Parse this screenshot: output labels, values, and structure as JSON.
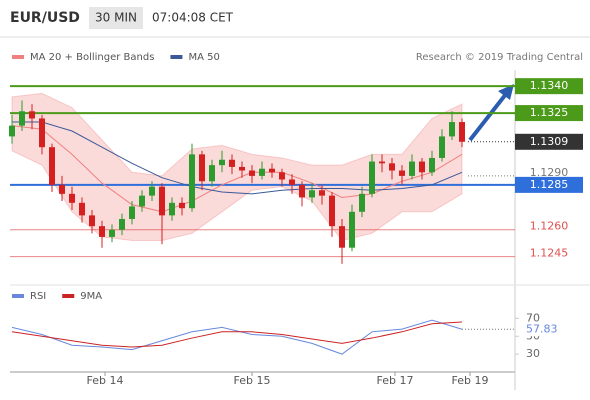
{
  "header": {
    "symbol": "EUR/USD",
    "timeframe": "30 MIN",
    "time": "07:04:08 CET"
  },
  "chart_data": [
    {
      "type": "candlestick",
      "credit": "Research © 2019 Trading Central",
      "up_color": "#2e9b2e",
      "down_color": "#d42020",
      "ylim": [
        1.1232,
        1.1349
      ],
      "xticks": [
        {
          "value": 9.3,
          "label": "Feb 14"
        },
        {
          "value": 24,
          "label": "Feb 15"
        },
        {
          "value": 38.3,
          "label": "Feb 17"
        },
        {
          "value": 45.8,
          "label": "Feb 19"
        }
      ],
      "candles": [
        [
          1.1312,
          1.1324,
          1.1308,
          1.1318
        ],
        [
          1.1318,
          1.1332,
          1.1315,
          1.1326
        ],
        [
          1.1326,
          1.133,
          1.1316,
          1.1322
        ],
        [
          1.1322,
          1.1324,
          1.1302,
          1.1306
        ],
        [
          1.1306,
          1.1308,
          1.1281,
          1.1285
        ],
        [
          1.1285,
          1.129,
          1.1276,
          1.128
        ],
        [
          1.128,
          1.1284,
          1.1271,
          1.1275
        ],
        [
          1.1275,
          1.1278,
          1.1264,
          1.1268
        ],
        [
          1.1268,
          1.1271,
          1.1258,
          1.1262
        ],
        [
          1.1262,
          1.1265,
          1.125,
          1.1256
        ],
        [
          1.1256,
          1.1263,
          1.1253,
          1.126
        ],
        [
          1.126,
          1.1269,
          1.1257,
          1.1266
        ],
        [
          1.1266,
          1.1276,
          1.1263,
          1.1273
        ],
        [
          1.1273,
          1.1282,
          1.127,
          1.1279
        ],
        [
          1.1279,
          1.1287,
          1.1276,
          1.1284
        ],
        [
          1.1284,
          1.1286,
          1.1252,
          1.1268
        ],
        [
          1.1268,
          1.1278,
          1.1265,
          1.1275
        ],
        [
          1.1275,
          1.1278,
          1.1268,
          1.1272
        ],
        [
          1.1272,
          1.1308,
          1.127,
          1.1302
        ],
        [
          1.1302,
          1.1304,
          1.1282,
          1.1287
        ],
        [
          1.1287,
          1.1299,
          1.1284,
          1.1296
        ],
        [
          1.1296,
          1.1304,
          1.1292,
          1.1299
        ],
        [
          1.1299,
          1.1302,
          1.1291,
          1.1295
        ],
        [
          1.1295,
          1.1298,
          1.1289,
          1.1293
        ],
        [
          1.1293,
          1.1296,
          1.1286,
          1.129
        ],
        [
          1.129,
          1.1298,
          1.1288,
          1.1294
        ],
        [
          1.1294,
          1.1297,
          1.1289,
          1.1292
        ],
        [
          1.1292,
          1.1294,
          1.1284,
          1.1288
        ],
        [
          1.1288,
          1.1291,
          1.128,
          1.1285
        ],
        [
          1.1285,
          1.1287,
          1.1273,
          1.1278
        ],
        [
          1.1278,
          1.1286,
          1.1275,
          1.1282
        ],
        [
          1.1282,
          1.1285,
          1.1274,
          1.1279
        ],
        [
          1.1279,
          1.1281,
          1.1256,
          1.1262
        ],
        [
          1.1262,
          1.1266,
          1.1241,
          1.125
        ],
        [
          1.125,
          1.1274,
          1.1248,
          1.127
        ],
        [
          1.127,
          1.1284,
          1.1267,
          1.128
        ],
        [
          1.128,
          1.1302,
          1.1278,
          1.1298
        ],
        [
          1.1298,
          1.1302,
          1.1292,
          1.1297
        ],
        [
          1.1297,
          1.13,
          1.1288,
          1.1293
        ],
        [
          1.1293,
          1.1296,
          1.1285,
          1.129
        ],
        [
          1.129,
          1.1302,
          1.1288,
          1.1298
        ],
        [
          1.1298,
          1.13,
          1.1288,
          1.1292
        ],
        [
          1.1292,
          1.1304,
          1.129,
          1.13
        ],
        [
          1.13,
          1.1316,
          1.1298,
          1.1312
        ],
        [
          1.1312,
          1.1326,
          1.131,
          1.132
        ],
        [
          1.132,
          1.1322,
          1.1306,
          1.1309
        ]
      ],
      "x": [
        0,
        3,
        6,
        9,
        12,
        15,
        18,
        21,
        24,
        27,
        30,
        33,
        36,
        39,
        42,
        45
      ],
      "series": [
        {
          "name": "MA 20 + Bollinger Bands",
          "color": "#f08080",
          "band_color": "#fbdada",
          "values": [
            1.1318,
            1.1316,
            1.1302,
            1.1286,
            1.1274,
            1.127,
            1.1276,
            1.1285,
            1.1292,
            1.1292,
            1.1286,
            1.1278,
            1.128,
            1.1287,
            1.1292,
            1.1302
          ],
          "upper": [
            1.1334,
            1.1336,
            1.1328,
            1.131,
            1.1292,
            1.129,
            1.1305,
            1.1307,
            1.1302,
            1.13,
            1.1296,
            1.1296,
            1.1302,
            1.1302,
            1.1322,
            1.133
          ],
          "lower": [
            1.1304,
            1.1296,
            1.127,
            1.1256,
            1.1254,
            1.1254,
            1.1258,
            1.127,
            1.1282,
            1.1284,
            1.1276,
            1.1254,
            1.1258,
            1.127,
            1.127,
            1.128
          ]
        },
        {
          "name": "MA 50",
          "color": "#3b5998",
          "values": [
            1.132,
            1.132,
            1.1315,
            1.1306,
            1.1297,
            1.1289,
            1.1284,
            1.1281,
            1.128,
            1.1282,
            1.1283,
            1.1283,
            1.1282,
            1.1283,
            1.1285,
            1.1292
          ]
        }
      ],
      "levels": [
        {
          "value": 1.134,
          "label": "1.1340",
          "color": "#4c9a1a",
          "style": "box-line"
        },
        {
          "value": 1.1325,
          "label": "1.1325",
          "color": "#4c9a1a",
          "style": "box-line"
        },
        {
          "value": 1.1309,
          "label": "1.1309",
          "color": "#333333",
          "style": "box-dotted"
        },
        {
          "value": 1.129,
          "label": "1.1290",
          "color": "#777777",
          "style": "text-dotted"
        },
        {
          "value": 1.1285,
          "label": "1.1285",
          "color": "#2f6fdb",
          "style": "box-line"
        },
        {
          "value": 1.126,
          "label": "1.1260",
          "color": "#e05050",
          "style": "text-line"
        },
        {
          "value": 1.1245,
          "label": "1.1245",
          "color": "#e05050",
          "style": "text-line"
        }
      ]
    },
    {
      "type": "line",
      "ylim": [
        10,
        85
      ],
      "yticks": [
        70,
        50,
        30
      ],
      "x": [
        0,
        3,
        6,
        9,
        12,
        15,
        18,
        21,
        24,
        27,
        30,
        33,
        36,
        39,
        42,
        45
      ],
      "series": [
        {
          "name": "RSI",
          "color": "#6688dd",
          "values": [
            60,
            52,
            40,
            38,
            35,
            45,
            55,
            60,
            52,
            50,
            42,
            30,
            55,
            58,
            68,
            57.83
          ]
        },
        {
          "name": "9MA",
          "color": "#cc2222",
          "values": [
            55,
            50,
            45,
            40,
            38,
            40,
            48,
            55,
            55,
            52,
            47,
            42,
            48,
            55,
            64,
            66
          ]
        }
      ]
    }
  ]
}
